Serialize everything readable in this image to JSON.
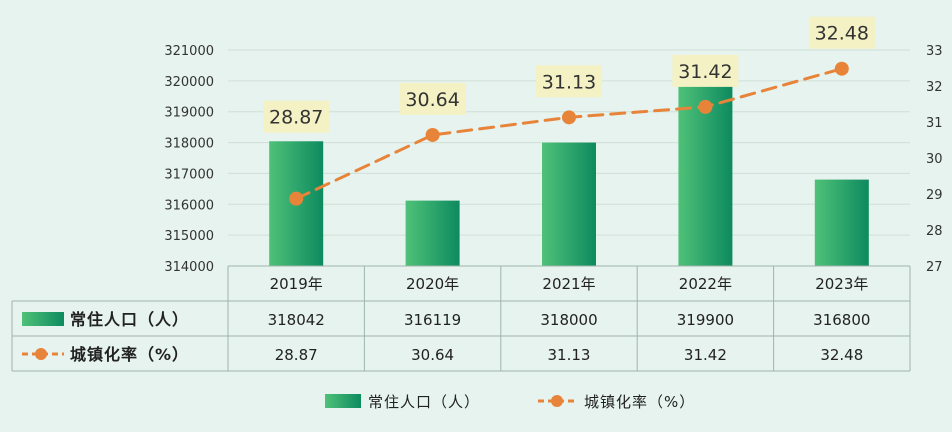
{
  "chart_data": {
    "type": "bar+line",
    "categories": [
      "2019年",
      "2020年",
      "2021年",
      "2022年",
      "2023年"
    ],
    "series": [
      {
        "name": "常住人口（人）",
        "type": "bar",
        "axis": "left",
        "values": [
          318042,
          316119,
          318000,
          319900,
          316800
        ],
        "value_labels": [
          "318042",
          "316119",
          "318000",
          "319900",
          "316800"
        ]
      },
      {
        "name": "城镇化率（%）",
        "type": "line",
        "axis": "right",
        "values": [
          28.87,
          30.64,
          31.13,
          31.42,
          32.48
        ],
        "value_labels": [
          "28.87",
          "30.64",
          "31.13",
          "31.42",
          "32.48"
        ]
      }
    ],
    "y_left": {
      "range": [
        314000,
        321000
      ],
      "ticks": [
        "314000",
        "315000",
        "316000",
        "317000",
        "318000",
        "319000",
        "320000",
        "321000"
      ]
    },
    "y_right": {
      "range": [
        27,
        33
      ],
      "ticks": [
        "27",
        "28",
        "29",
        "30",
        "31",
        "32",
        "33"
      ]
    },
    "grid": true,
    "data_table": true,
    "legend_position": "bottom",
    "colors": {
      "bar_light": "#4fc178",
      "bar_dark": "#0d8a5f",
      "line": "#e8843a",
      "label_bg": "#f4f2c4",
      "background": "#e6f3ee"
    }
  }
}
